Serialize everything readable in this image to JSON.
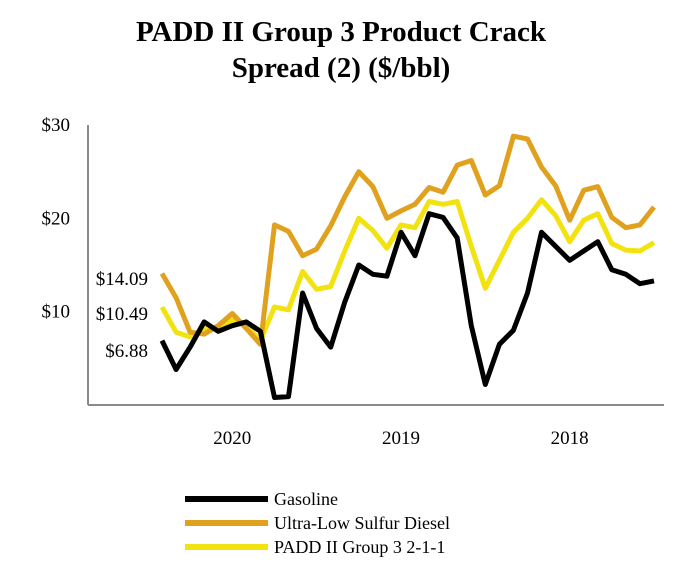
{
  "chart_data": {
    "type": "line",
    "title": [
      "PADD II Group 3 Product Crack",
      "Spread (2) ($/bbl)"
    ],
    "xlabel": "",
    "ylabel": "",
    "ylim": [
      0,
      30
    ],
    "yticks": [
      {
        "value": 10,
        "label": "$10"
      },
      {
        "value": 20,
        "label": "$20"
      },
      {
        "value": 30,
        "label": "$30"
      }
    ],
    "xtick_labels": [
      {
        "index": 5,
        "label": "2020"
      },
      {
        "index": 17,
        "label": "2019"
      },
      {
        "index": 29,
        "label": "2018"
      }
    ],
    "annotations": [
      {
        "text": "$14.09",
        "value": 14.09
      },
      {
        "text": "$10.49",
        "value": 10.49
      },
      {
        "text": "$6.88",
        "value": 6.88
      }
    ],
    "series": [
      {
        "name": "Gasoline",
        "color": "#000000",
        "values": [
          6.9,
          3.8,
          6.2,
          8.9,
          7.9,
          8.5,
          8.9,
          7.9,
          0.8,
          0.9,
          12.0,
          8.2,
          6.2,
          11.0,
          15.0,
          14.0,
          13.8,
          18.5,
          16.0,
          20.5,
          20.1,
          17.9,
          8.5,
          2.2,
          6.5,
          8.0,
          12.0,
          18.5,
          17.0,
          15.5,
          16.5,
          17.5,
          14.5,
          14.0,
          13.0,
          13.3
        ]
      },
      {
        "name": "Ultra-Low Sulfur Diesel",
        "color": "#E0A21E",
        "values": [
          14.09,
          11.5,
          7.8,
          7.6,
          8.5,
          9.8,
          8.2,
          6.5,
          19.3,
          18.6,
          16.0,
          16.7,
          19.2,
          22.3,
          25.0,
          23.4,
          20.0,
          20.8,
          21.5,
          23.3,
          22.8,
          25.7,
          26.2,
          22.5,
          23.5,
          28.8,
          28.5,
          25.5,
          23.5,
          19.8,
          23.0,
          23.4,
          20.1,
          19.0,
          19.3,
          21.2
        ]
      },
      {
        "name": "PADD II Group 3 2-1-1",
        "color": "#F2E20F",
        "values": [
          10.49,
          7.8,
          7.3,
          8.2,
          8.2,
          9.1,
          8.5,
          6.9,
          10.5,
          10.2,
          14.3,
          12.4,
          12.7,
          16.5,
          20.0,
          18.7,
          16.8,
          19.3,
          19.0,
          21.8,
          21.5,
          21.8,
          17.0,
          12.5,
          15.5,
          18.5,
          20.0,
          22.0,
          20.3,
          17.5,
          19.8,
          20.5,
          17.3,
          16.6,
          16.5,
          17.4
        ]
      }
    ],
    "legend_position": "bottom"
  }
}
